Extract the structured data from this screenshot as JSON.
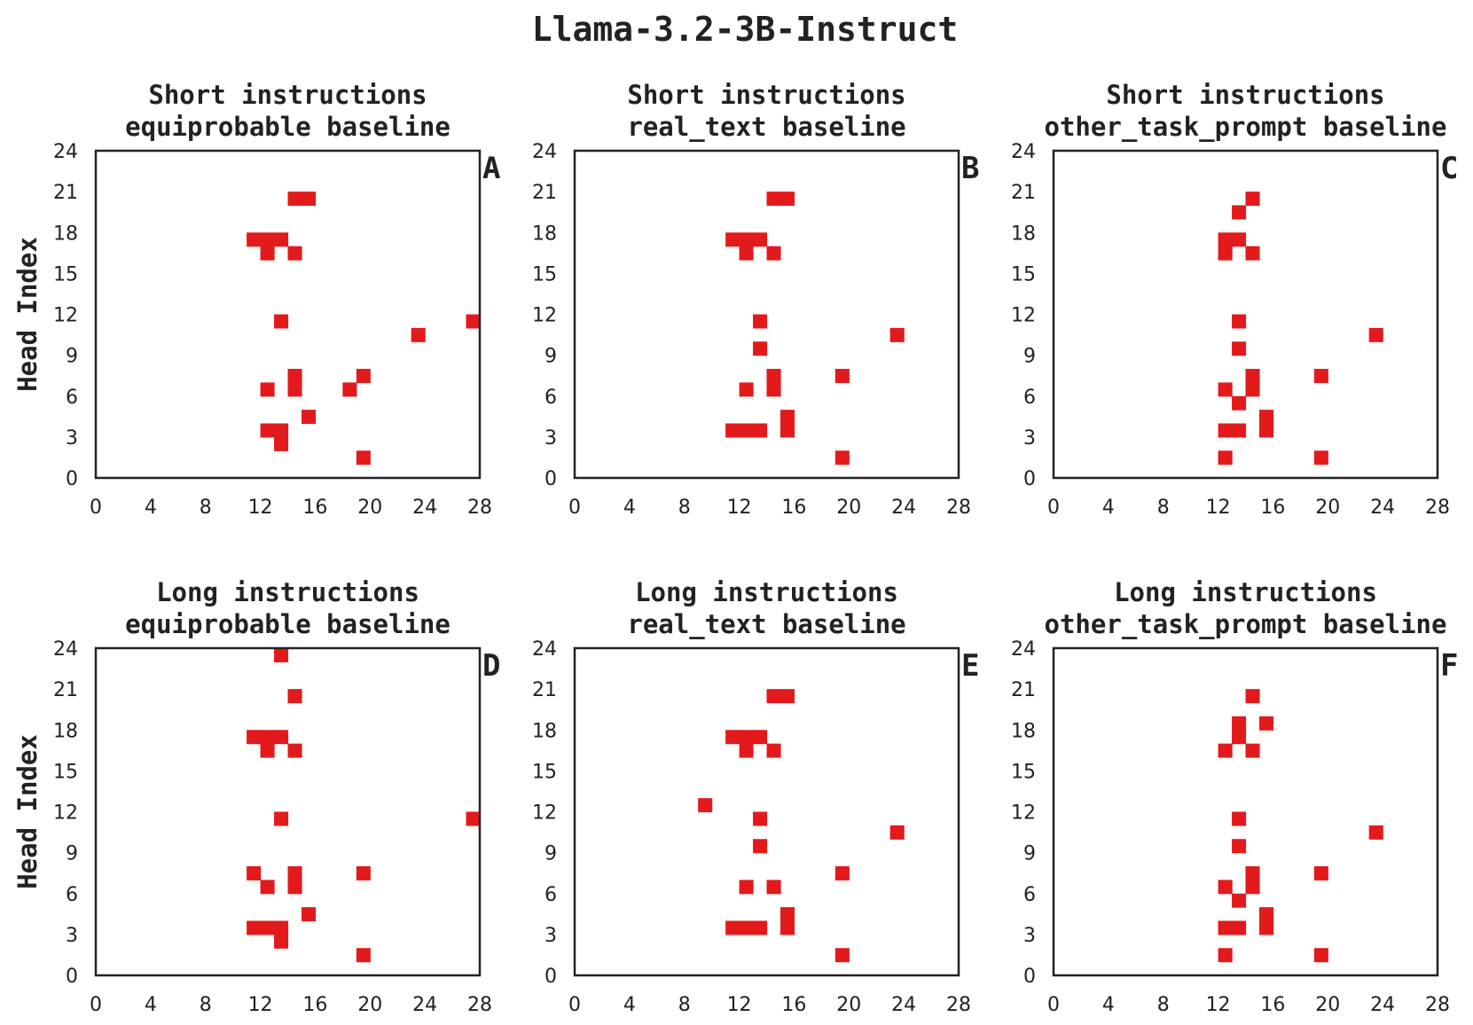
{
  "figure": {
    "title": "Llama-3.2-3B-Instruct"
  },
  "colors": {
    "marker": "#e31a1c",
    "axis": "#222222"
  },
  "chart_data": [
    {
      "type": "heatmap",
      "panel": "A",
      "title": [
        "Short instructions",
        "equiprobable baseline"
      ],
      "ylabel": "Head Index",
      "xlim": [
        0,
        28
      ],
      "ylim": [
        0,
        24
      ],
      "xticks": [
        0,
        4,
        8,
        12,
        16,
        20,
        24,
        28
      ],
      "yticks": [
        0,
        3,
        6,
        9,
        12,
        15,
        18,
        21,
        24
      ],
      "cells": [
        [
          14,
          20
        ],
        [
          15,
          20
        ],
        [
          11,
          17
        ],
        [
          12,
          17
        ],
        [
          13,
          17
        ],
        [
          12,
          16
        ],
        [
          14,
          16
        ],
        [
          13,
          11
        ],
        [
          27,
          11
        ],
        [
          23,
          10
        ],
        [
          19,
          7
        ],
        [
          14,
          7
        ],
        [
          12,
          6
        ],
        [
          14,
          6
        ],
        [
          18,
          6
        ],
        [
          15,
          4
        ],
        [
          12,
          3
        ],
        [
          13,
          3
        ],
        [
          13,
          2
        ],
        [
          19,
          1
        ]
      ]
    },
    {
      "type": "heatmap",
      "panel": "B",
      "title": [
        "Short instructions",
        "real_text baseline"
      ],
      "ylabel": "",
      "xlim": [
        0,
        28
      ],
      "ylim": [
        0,
        24
      ],
      "xticks": [
        0,
        4,
        8,
        12,
        16,
        20,
        24,
        28
      ],
      "yticks": [
        0,
        3,
        6,
        9,
        12,
        15,
        18,
        21,
        24
      ],
      "cells": [
        [
          14,
          20
        ],
        [
          15,
          20
        ],
        [
          11,
          17
        ],
        [
          12,
          17
        ],
        [
          13,
          17
        ],
        [
          12,
          16
        ],
        [
          14,
          16
        ],
        [
          13,
          11
        ],
        [
          23,
          10
        ],
        [
          13,
          9
        ],
        [
          14,
          7
        ],
        [
          19,
          7
        ],
        [
          12,
          6
        ],
        [
          14,
          6
        ],
        [
          15,
          4
        ],
        [
          11,
          3
        ],
        [
          12,
          3
        ],
        [
          13,
          3
        ],
        [
          15,
          3
        ],
        [
          19,
          1
        ]
      ]
    },
    {
      "type": "heatmap",
      "panel": "C",
      "title": [
        "Short instructions",
        "other_task_prompt baseline"
      ],
      "ylabel": "",
      "xlim": [
        0,
        28
      ],
      "ylim": [
        0,
        24
      ],
      "xticks": [
        0,
        4,
        8,
        12,
        16,
        20,
        24,
        28
      ],
      "yticks": [
        0,
        3,
        6,
        9,
        12,
        15,
        18,
        21,
        24
      ],
      "cells": [
        [
          14,
          20
        ],
        [
          13,
          19
        ],
        [
          12,
          17
        ],
        [
          13,
          17
        ],
        [
          12,
          16
        ],
        [
          14,
          16
        ],
        [
          13,
          11
        ],
        [
          23,
          10
        ],
        [
          13,
          9
        ],
        [
          14,
          7
        ],
        [
          19,
          7
        ],
        [
          12,
          6
        ],
        [
          14,
          6
        ],
        [
          13,
          5
        ],
        [
          15,
          4
        ],
        [
          12,
          3
        ],
        [
          13,
          3
        ],
        [
          15,
          3
        ],
        [
          12,
          1
        ],
        [
          19,
          1
        ]
      ]
    },
    {
      "type": "heatmap",
      "panel": "D",
      "title": [
        "Long instructions",
        "equiprobable baseline"
      ],
      "ylabel": "Head Index",
      "xlim": [
        0,
        28
      ],
      "ylim": [
        0,
        24
      ],
      "xticks": [
        0,
        4,
        8,
        12,
        16,
        20,
        24,
        28
      ],
      "yticks": [
        0,
        3,
        6,
        9,
        12,
        15,
        18,
        21,
        24
      ],
      "cells": [
        [
          13,
          23
        ],
        [
          14,
          20
        ],
        [
          11,
          17
        ],
        [
          12,
          17
        ],
        [
          13,
          17
        ],
        [
          12,
          16
        ],
        [
          14,
          16
        ],
        [
          13,
          11
        ],
        [
          27,
          11
        ],
        [
          11,
          7
        ],
        [
          14,
          7
        ],
        [
          19,
          7
        ],
        [
          12,
          6
        ],
        [
          14,
          6
        ],
        [
          15,
          4
        ],
        [
          11,
          3
        ],
        [
          12,
          3
        ],
        [
          13,
          3
        ],
        [
          13,
          2
        ],
        [
          19,
          1
        ]
      ]
    },
    {
      "type": "heatmap",
      "panel": "E",
      "title": [
        "Long instructions",
        "real_text baseline"
      ],
      "ylabel": "",
      "xlim": [
        0,
        28
      ],
      "ylim": [
        0,
        24
      ],
      "xticks": [
        0,
        4,
        8,
        12,
        16,
        20,
        24,
        28
      ],
      "yticks": [
        0,
        3,
        6,
        9,
        12,
        15,
        18,
        21,
        24
      ],
      "cells": [
        [
          14,
          20
        ],
        [
          15,
          20
        ],
        [
          11,
          17
        ],
        [
          12,
          17
        ],
        [
          13,
          17
        ],
        [
          12,
          16
        ],
        [
          14,
          16
        ],
        [
          9,
          12
        ],
        [
          13,
          11
        ],
        [
          23,
          10
        ],
        [
          13,
          9
        ],
        [
          19,
          7
        ],
        [
          12,
          6
        ],
        [
          14,
          6
        ],
        [
          15,
          4
        ],
        [
          11,
          3
        ],
        [
          12,
          3
        ],
        [
          13,
          3
        ],
        [
          15,
          3
        ],
        [
          19,
          1
        ]
      ]
    },
    {
      "type": "heatmap",
      "panel": "F",
      "title": [
        "Long instructions",
        "other_task_prompt baseline"
      ],
      "ylabel": "",
      "xlim": [
        0,
        28
      ],
      "ylim": [
        0,
        24
      ],
      "xticks": [
        0,
        4,
        8,
        12,
        16,
        20,
        24,
        28
      ],
      "yticks": [
        0,
        3,
        6,
        9,
        12,
        15,
        18,
        21,
        24
      ],
      "cells": [
        [
          14,
          20
        ],
        [
          13,
          18
        ],
        [
          15,
          18
        ],
        [
          13,
          17
        ],
        [
          12,
          16
        ],
        [
          14,
          16
        ],
        [
          13,
          11
        ],
        [
          23,
          10
        ],
        [
          13,
          9
        ],
        [
          14,
          7
        ],
        [
          19,
          7
        ],
        [
          12,
          6
        ],
        [
          14,
          6
        ],
        [
          13,
          5
        ],
        [
          15,
          4
        ],
        [
          12,
          3
        ],
        [
          13,
          3
        ],
        [
          15,
          3
        ],
        [
          12,
          1
        ],
        [
          19,
          1
        ]
      ]
    }
  ]
}
